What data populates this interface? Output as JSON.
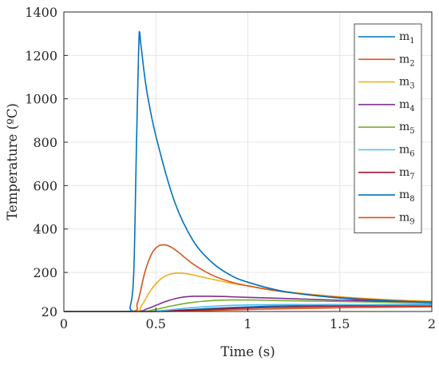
{
  "chart_data": {
    "type": "line",
    "title": "",
    "xlabel": "Time (s)",
    "ylabel": "Temperature (ºC)",
    "xlim": [
      0,
      2
    ],
    "ylim": [
      20,
      1400
    ],
    "x_ticks": [
      0,
      0.5,
      1,
      1.5,
      2
    ],
    "x_tick_labels": [
      "0",
      "0.5",
      "1",
      "1.5",
      "2"
    ],
    "y_ticks": [
      20,
      200,
      400,
      600,
      800,
      1000,
      1200,
      1400
    ],
    "y_tick_labels": [
      "20",
      "200",
      "400",
      "600",
      "800",
      "1000",
      "1200",
      "1400"
    ],
    "grid": true,
    "legend_position": "top-right",
    "series": [
      {
        "name": "m",
        "subscript": "1",
        "color": "#0072BD",
        "x": [
          0,
          0.34,
          0.36,
          0.38,
          0.395,
          0.41,
          0.42,
          0.45,
          0.5,
          0.6,
          0.7,
          0.8,
          0.9,
          1.0,
          1.2,
          1.5,
          1.8,
          2.0
        ],
        "y": [
          20,
          20,
          40,
          200,
          800,
          1310,
          1240,
          1040,
          830,
          530,
          350,
          250,
          190,
          155,
          112,
          82,
          68,
          62
        ]
      },
      {
        "name": "m",
        "subscript": "2",
        "color": "#D95319",
        "x": [
          0,
          0.36,
          0.4,
          0.44,
          0.48,
          0.52,
          0.55,
          0.58,
          0.62,
          0.7,
          0.8,
          0.9,
          1.0,
          1.2,
          1.5,
          1.8,
          2.0
        ],
        "y": [
          20,
          20,
          60,
          200,
          290,
          325,
          327,
          318,
          295,
          240,
          190,
          158,
          138,
          110,
          85,
          70,
          64
        ]
      },
      {
        "name": "m",
        "subscript": "3",
        "color": "#EDB120",
        "x": [
          0,
          0.37,
          0.42,
          0.47,
          0.52,
          0.57,
          0.62,
          0.66,
          0.72,
          0.8,
          0.9,
          1.0,
          1.2,
          1.5,
          1.8,
          2.0
        ],
        "y": [
          20,
          20,
          45,
          115,
          165,
          190,
          197,
          195,
          185,
          170,
          152,
          138,
          112,
          88,
          73,
          67
        ]
      },
      {
        "name": "m",
        "subscript": "4",
        "color": "#7E2F8E",
        "x": [
          0,
          0.38,
          0.45,
          0.5,
          0.55,
          0.62,
          0.7,
          0.8,
          0.9,
          1.0,
          1.2,
          1.5,
          1.8,
          2.0
        ],
        "y": [
          20,
          20,
          32,
          48,
          65,
          82,
          90,
          90,
          88,
          85,
          80,
          72,
          66,
          62
        ]
      },
      {
        "name": "m",
        "subscript": "5",
        "color": "#77AC30",
        "x": [
          0,
          0.4,
          0.5,
          0.6,
          0.7,
          0.8,
          0.9,
          1.0,
          1.1,
          1.2,
          1.5,
          1.8,
          2.0
        ],
        "y": [
          20,
          20,
          30,
          48,
          62,
          70,
          73,
          73,
          72,
          70,
          66,
          62,
          60
        ]
      },
      {
        "name": "m",
        "subscript": "6",
        "color": "#4DBEEE",
        "x": [
          0,
          0.42,
          0.55,
          0.7,
          0.85,
          1.0,
          1.2,
          1.5,
          1.8,
          2.0
        ],
        "y": [
          20,
          20,
          26,
          38,
          46,
          50,
          52,
          52,
          51,
          50
        ]
      },
      {
        "name": "m",
        "subscript": "7",
        "color": "#A2142F",
        "x": [
          0,
          0.45,
          0.6,
          0.8,
          1.0,
          1.2,
          1.5,
          1.8,
          2.0
        ],
        "y": [
          20,
          20,
          23,
          30,
          36,
          40,
          44,
          46,
          47
        ]
      },
      {
        "name": "m",
        "subscript": "8",
        "color": "#0072BD",
        "x": [
          0,
          0.45,
          0.6,
          0.8,
          1.0,
          1.2,
          1.5,
          1.8,
          2.0
        ],
        "y": [
          20,
          20,
          25,
          34,
          41,
          46,
          50,
          52,
          53
        ]
      },
      {
        "name": "m",
        "subscript": "9",
        "color": "#D95319",
        "x": [
          0,
          0.5,
          0.7,
          0.9,
          1.1,
          1.3,
          1.5,
          1.8,
          2.0
        ],
        "y": [
          20,
          20,
          23,
          27,
          31,
          34,
          37,
          40,
          42
        ]
      }
    ]
  }
}
